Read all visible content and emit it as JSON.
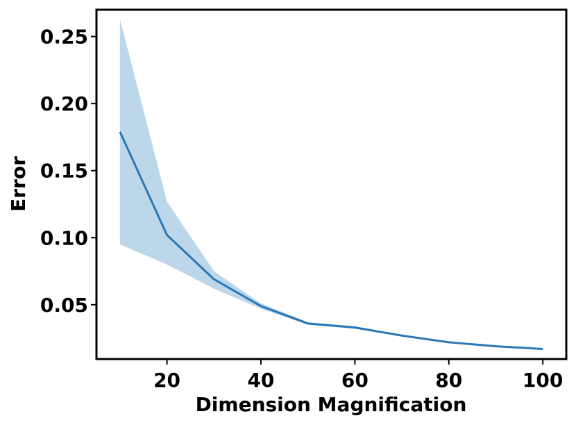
{
  "chart_data": {
    "type": "line",
    "xlabel": "Dimension Magnification",
    "ylabel": "Error",
    "xlim": [
      5,
      105
    ],
    "ylim": [
      0.0095,
      0.27
    ],
    "x_ticks": [
      "20",
      "40",
      "60",
      "80",
      "100"
    ],
    "y_ticks": [
      "0.05",
      "0.10",
      "0.15",
      "0.20",
      "0.25"
    ],
    "grid": false,
    "legend": "none",
    "colors": {
      "line": "#2b78b4",
      "band": "#bcd7ea",
      "axes": "#000000"
    },
    "series": [
      {
        "x": [
          10,
          20,
          30,
          40,
          50,
          60,
          70,
          80,
          90,
          100
        ],
        "values": [
          0.179,
          0.102,
          0.069,
          0.049,
          0.036,
          0.033,
          0.027,
          0.022,
          0.019,
          0.017
        ],
        "upper": [
          0.263,
          0.127,
          0.075,
          0.051,
          0.037,
          0.034,
          0.0275,
          0.0225,
          0.0193,
          0.0172
        ],
        "lower": [
          0.095,
          0.08,
          0.062,
          0.047,
          0.035,
          0.032,
          0.0265,
          0.0215,
          0.0187,
          0.0168
        ]
      }
    ]
  }
}
